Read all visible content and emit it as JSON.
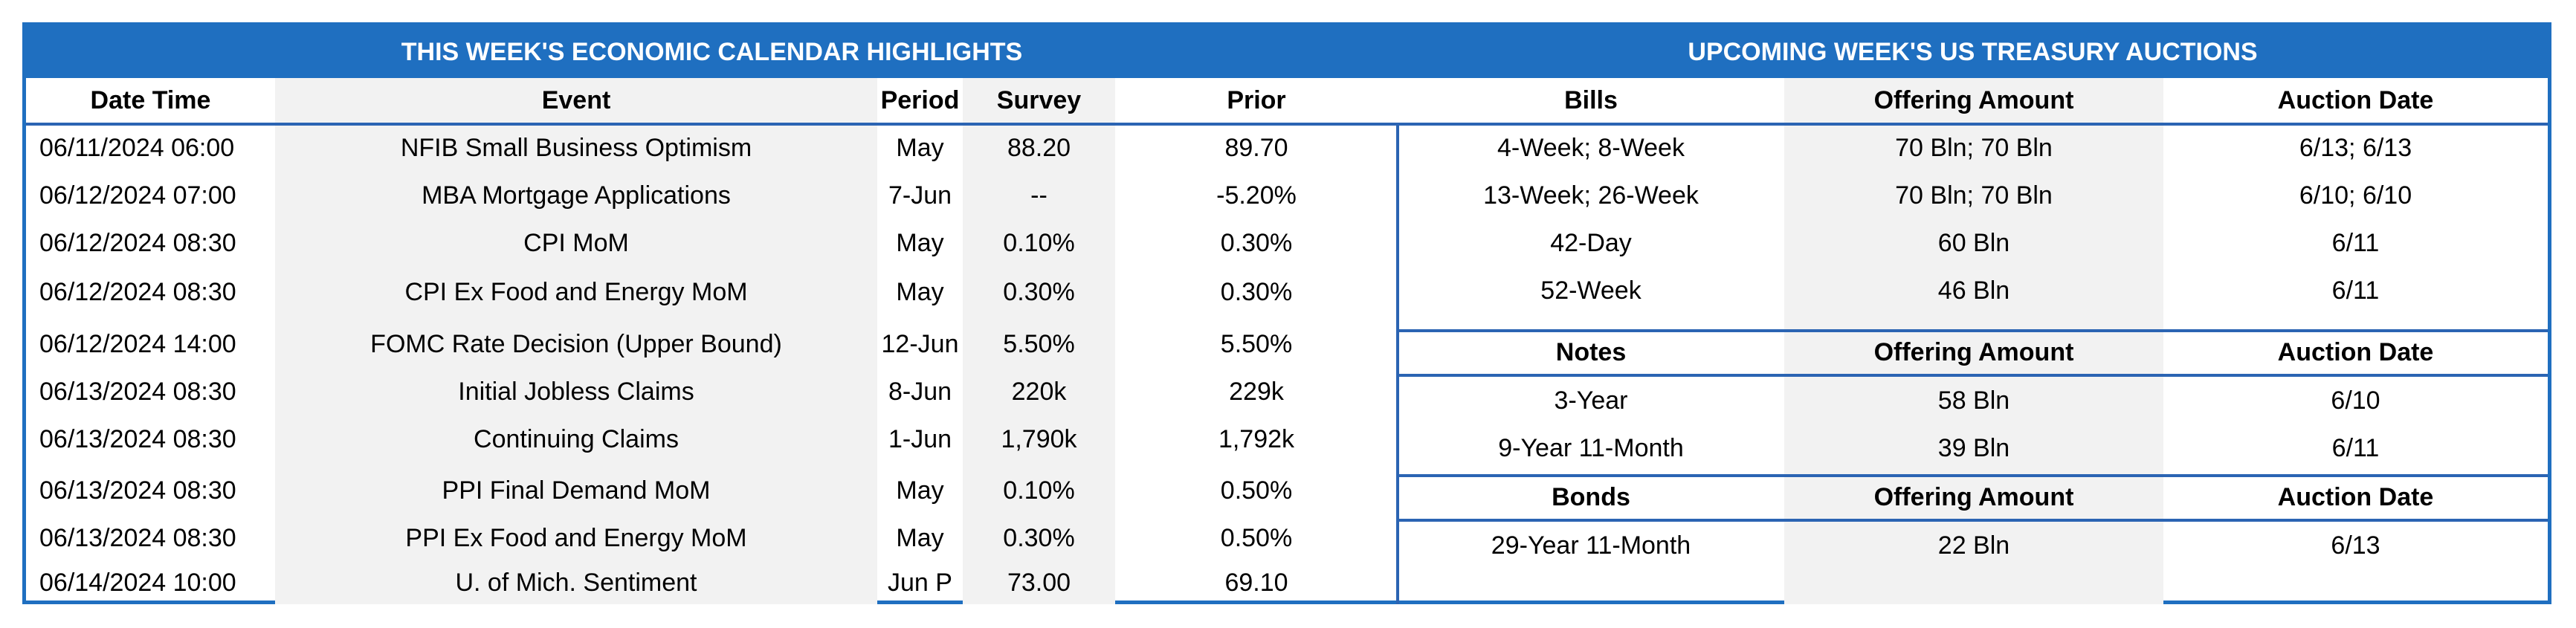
{
  "calendar": {
    "title": "THIS WEEK'S ECONOMIC CALENDAR HIGHLIGHTS",
    "headers": [
      "Date Time",
      "Event",
      "Period",
      "Survey",
      "Prior"
    ],
    "rows": [
      [
        "06/11/2024 06:00",
        "NFIB Small Business Optimism",
        "May",
        "88.20",
        "89.70"
      ],
      [
        "06/12/2024 07:00",
        "MBA Mortgage Applications",
        "7-Jun",
        "--",
        "-5.20%"
      ],
      [
        "06/12/2024 08:30",
        "CPI MoM",
        "May",
        "0.10%",
        "0.30%"
      ],
      [
        "06/12/2024 08:30",
        "CPI Ex Food and Energy MoM",
        "May",
        "0.30%",
        "0.30%"
      ],
      [
        "06/12/2024 14:00",
        "FOMC Rate Decision (Upper Bound)",
        "12-Jun",
        "5.50%",
        "5.50%"
      ],
      [
        "06/13/2024 08:30",
        "Initial Jobless Claims",
        "8-Jun",
        "220k",
        "229k"
      ],
      [
        "06/13/2024 08:30",
        "Continuing Claims",
        "1-Jun",
        "1,790k",
        "1,792k"
      ],
      [
        "06/13/2024 08:30",
        "PPI Final Demand MoM",
        "May",
        "0.10%",
        "0.50%"
      ],
      [
        "06/13/2024 08:30",
        "PPI Ex Food and Energy MoM",
        "May",
        "0.30%",
        "0.50%"
      ],
      [
        "06/14/2024 10:00",
        "U. of Mich. Sentiment",
        "Jun P",
        "73.00",
        "69.10"
      ]
    ]
  },
  "auctions": {
    "title": "UPCOMING WEEK'S US TREASURY AUCTIONS",
    "bills": {
      "headers": [
        "Bills",
        "Offering Amount",
        "Auction Date"
      ],
      "rows": [
        [
          "4-Week; 8-Week",
          "70 Bln; 70 Bln",
          "6/13; 6/13"
        ],
        [
          "13-Week; 26-Week",
          "70 Bln; 70 Bln",
          "6/10; 6/10"
        ],
        [
          "42-Day",
          "60 Bln",
          "6/11"
        ],
        [
          "52-Week",
          "46 Bln",
          "6/11"
        ]
      ]
    },
    "notes": {
      "headers": [
        "Notes",
        "Offering Amount",
        "Auction Date"
      ],
      "rows": [
        [
          "3-Year",
          "58 Bln",
          "6/10"
        ],
        [
          "9-Year 11-Month",
          "39 Bln",
          "6/11"
        ]
      ]
    },
    "bonds": {
      "headers": [
        "Bonds",
        "Offering Amount",
        "Auction Date"
      ],
      "rows": [
        [
          "29-Year 11-Month",
          "22 Bln",
          "6/13"
        ]
      ]
    }
  },
  "colors": {
    "header_bg": "#1f6fc0",
    "rule": "#2b64b3",
    "shade": "#f2f2f2"
  }
}
